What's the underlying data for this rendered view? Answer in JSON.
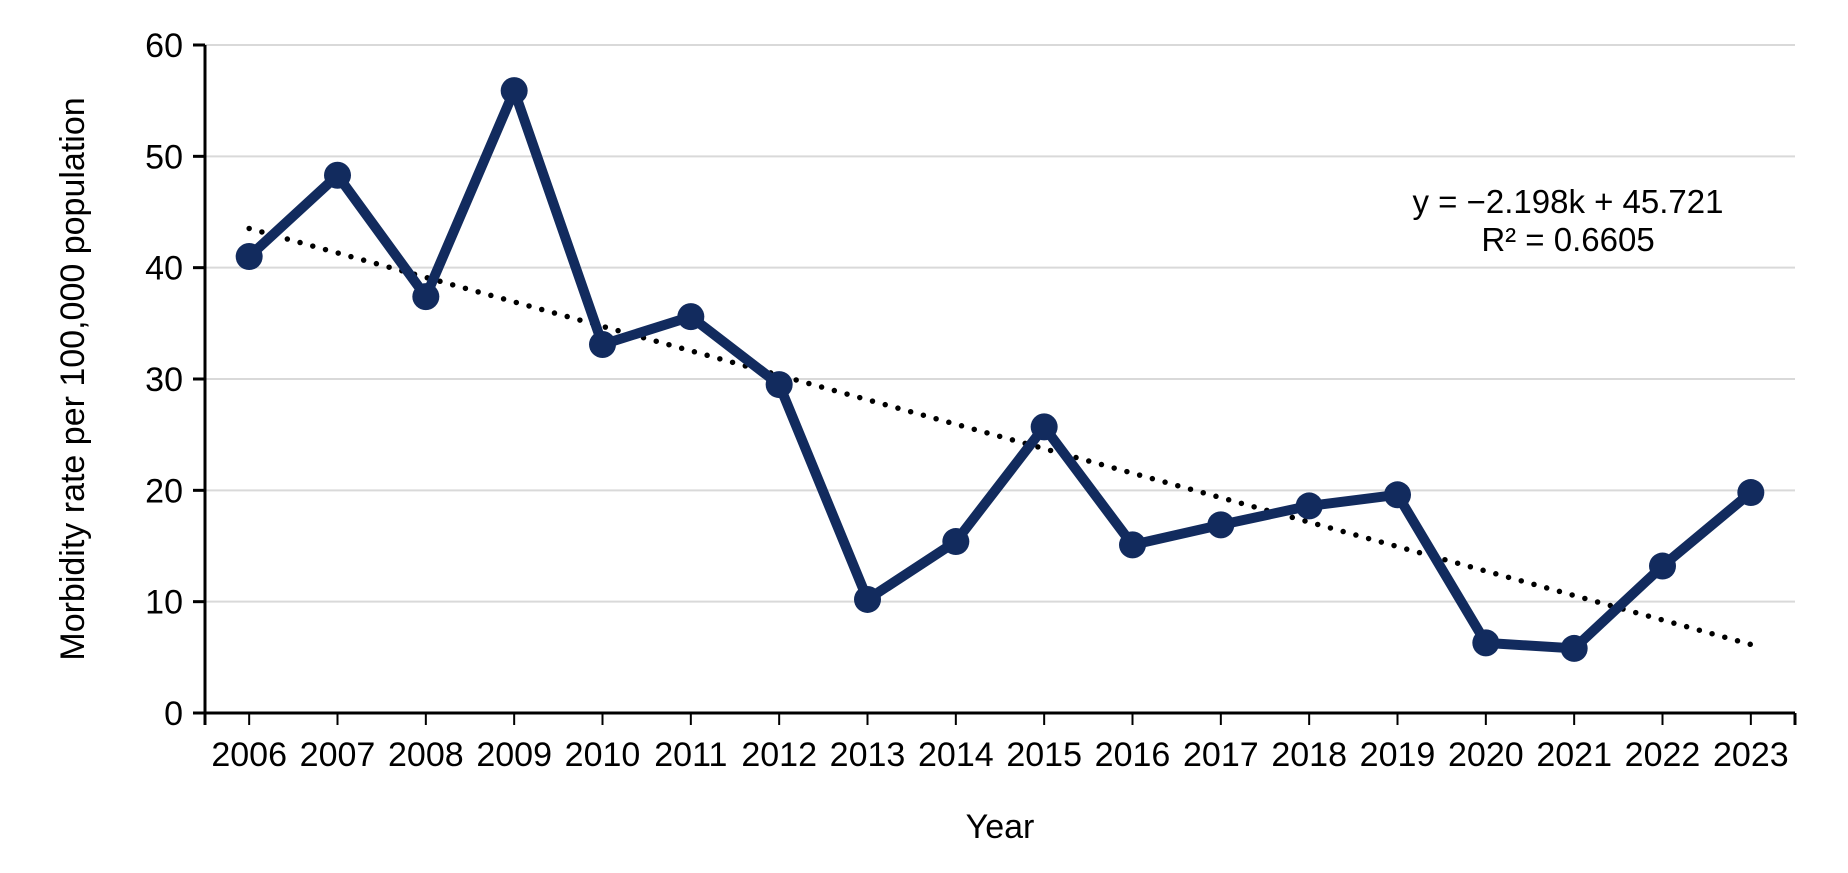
{
  "figure": {
    "title": "",
    "equation_text": "y = −2.198k + 45.721",
    "r2_text": "R² = 0.6605"
  },
  "chart_data": {
    "type": "line",
    "title": "",
    "xlabel": "Year",
    "ylabel": "Morbidity rate per 100,000 population",
    "categories": [
      "2006",
      "2007",
      "2008",
      "2009",
      "2010",
      "2011",
      "2012",
      "2013",
      "2014",
      "2015",
      "2016",
      "2017",
      "2018",
      "2019",
      "2020",
      "2021",
      "2022",
      "2023"
    ],
    "series": [
      {
        "name": "Morbidity rate per 100,000 population",
        "values": [
          41.0,
          48.3,
          37.4,
          55.9,
          33.1,
          35.6,
          29.5,
          10.2,
          15.4,
          25.7,
          15.1,
          16.9,
          18.6,
          19.6,
          6.3,
          5.8,
          13.2,
          19.8
        ]
      }
    ],
    "trendline": {
      "type": "linear",
      "slope": -2.198,
      "intercept": 45.721,
      "r_squared": 0.6605,
      "equation_text": "y = −2.198k + 45.721",
      "r2_text": "R² = 0.6605",
      "style": "dotted"
    },
    "ylim": [
      0,
      60
    ],
    "ytick_step": 10,
    "yticks": [
      0,
      10,
      20,
      30,
      40,
      50,
      60
    ],
    "grid": "horizontal",
    "legend": "none",
    "colors": {
      "series": "#122b5e",
      "trendline": "#000000",
      "gridline": "#d9d9d9",
      "axis": "#000000",
      "text": "#000000"
    }
  }
}
